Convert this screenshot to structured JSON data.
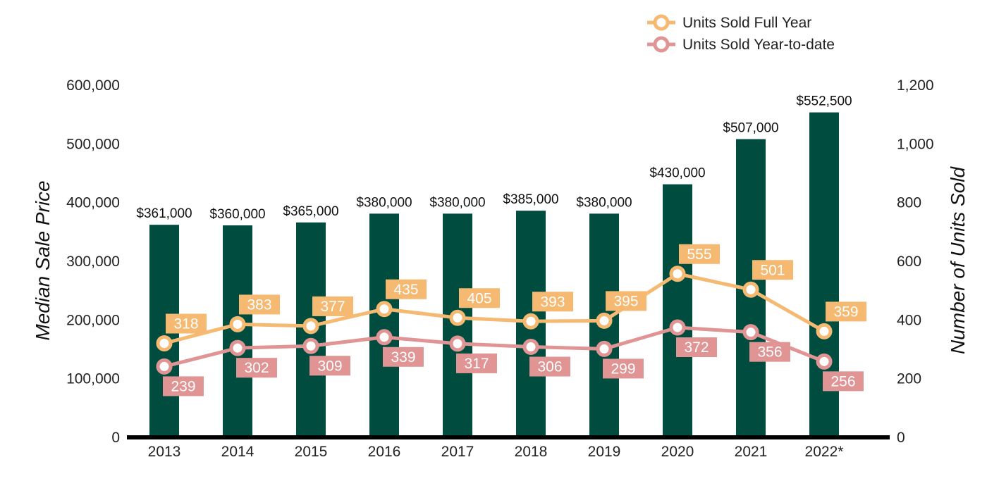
{
  "chart_data": {
    "type": "bar",
    "categories": [
      "2013",
      "2014",
      "2015",
      "2016",
      "2017",
      "2018",
      "2019",
      "2020",
      "2021",
      "2022*"
    ],
    "bars": {
      "values": [
        361000,
        360000,
        365000,
        380000,
        380000,
        385000,
        380000,
        430000,
        507000,
        552500
      ],
      "labels": [
        "$361,000",
        "$360,000",
        "$365,000",
        "$380,000",
        "$380,000",
        "$385,000",
        "$380,000",
        "$430,000",
        "$507,000",
        "$552,500"
      ],
      "color": "#004d40"
    },
    "series": [
      {
        "name": "Units Sold Full Year",
        "type": "line",
        "axis": "right",
        "values": [
          318,
          383,
          377,
          435,
          405,
          393,
          395,
          555,
          501,
          359
        ],
        "color": "#f5b971",
        "label_position": "above"
      },
      {
        "name": "Units Sold Year-to-date",
        "type": "line",
        "axis": "right",
        "values": [
          239,
          302,
          309,
          339,
          317,
          306,
          299,
          372,
          356,
          256
        ],
        "color": "#e09494",
        "label_position": "below"
      }
    ],
    "ylabel": "Median Sale Price",
    "y2label": "Number of Units Sold",
    "ylim": [
      0,
      600000
    ],
    "y2lim": [
      0,
      1200
    ],
    "yticks": [
      "0",
      "100,000",
      "200,000",
      "300,000",
      "400,000",
      "500,000",
      "600,000"
    ],
    "y2ticks": [
      "0",
      "200",
      "400",
      "600",
      "800",
      "1,000",
      "1,200"
    ],
    "grid": false,
    "legend_position": "top-right"
  }
}
